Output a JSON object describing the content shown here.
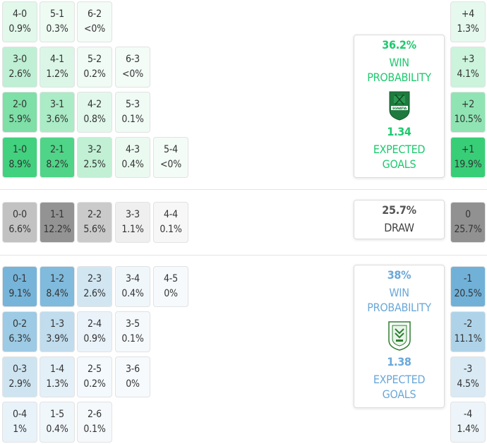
{
  "home": {
    "rows": [
      [
        {
          "score": "4-0",
          "pct": "0.9%"
        },
        {
          "score": "5-1",
          "pct": "0.3%"
        },
        {
          "score": "6-2",
          "pct": "<0%"
        }
      ],
      [
        {
          "score": "3-0",
          "pct": "2.6%"
        },
        {
          "score": "4-1",
          "pct": "1.2%"
        },
        {
          "score": "5-2",
          "pct": "0.2%"
        },
        {
          "score": "6-3",
          "pct": "<0%"
        }
      ],
      [
        {
          "score": "2-0",
          "pct": "5.9%"
        },
        {
          "score": "3-1",
          "pct": "3.6%"
        },
        {
          "score": "4-2",
          "pct": "0.8%"
        },
        {
          "score": "5-3",
          "pct": "0.1%"
        }
      ],
      [
        {
          "score": "1-0",
          "pct": "8.9%"
        },
        {
          "score": "2-1",
          "pct": "8.2%"
        },
        {
          "score": "3-2",
          "pct": "2.5%"
        },
        {
          "score": "4-3",
          "pct": "0.4%"
        },
        {
          "score": "5-4",
          "pct": "<0%"
        }
      ]
    ],
    "margins": [
      {
        "label": "+4",
        "pct": "1.3%"
      },
      {
        "label": "+3",
        "pct": "4.1%"
      },
      {
        "label": "+2",
        "pct": "10.5%"
      },
      {
        "label": "+1",
        "pct": "19.9%"
      }
    ],
    "win_probability": "36.2%",
    "win_label_1": "WIN",
    "win_label_2": "PROBABILITY",
    "expected_goals": "1.34",
    "xg_label_1": "EXPECTED",
    "xg_label_2": "GOALS",
    "logo_text": "EGNATIA",
    "color": "#2ecc71"
  },
  "draw": {
    "row": [
      {
        "score": "0-0",
        "pct": "6.6%"
      },
      {
        "score": "1-1",
        "pct": "12.2%"
      },
      {
        "score": "2-2",
        "pct": "5.6%"
      },
      {
        "score": "3-3",
        "pct": "1.1%"
      },
      {
        "score": "4-4",
        "pct": "0.1%"
      }
    ],
    "margin": {
      "label": "0",
      "pct": "25.7%"
    },
    "probability": "25.7%",
    "label": "DRAW",
    "color": "#555555"
  },
  "away": {
    "rows": [
      [
        {
          "score": "0-1",
          "pct": "9.1%"
        },
        {
          "score": "1-2",
          "pct": "8.4%"
        },
        {
          "score": "2-3",
          "pct": "2.6%"
        },
        {
          "score": "3-4",
          "pct": "0.4%"
        },
        {
          "score": "4-5",
          "pct": "0%"
        }
      ],
      [
        {
          "score": "0-2",
          "pct": "6.3%"
        },
        {
          "score": "1-3",
          "pct": "3.9%"
        },
        {
          "score": "2-4",
          "pct": "0.9%"
        },
        {
          "score": "3-5",
          "pct": "0.1%"
        }
      ],
      [
        {
          "score": "0-3",
          "pct": "2.9%"
        },
        {
          "score": "1-4",
          "pct": "1.3%"
        },
        {
          "score": "2-5",
          "pct": "0.2%"
        },
        {
          "score": "3-6",
          "pct": "0%"
        }
      ],
      [
        {
          "score": "0-4",
          "pct": "1%"
        },
        {
          "score": "1-5",
          "pct": "0.4%"
        },
        {
          "score": "2-6",
          "pct": "0.1%"
        }
      ]
    ],
    "margins": [
      {
        "label": "-1",
        "pct": "20.5%"
      },
      {
        "label": "-2",
        "pct": "11.1%"
      },
      {
        "label": "-3",
        "pct": "4.5%"
      },
      {
        "label": "-4",
        "pct": "1.4%"
      }
    ],
    "win_probability": "38%",
    "win_label_1": "WIN",
    "win_label_2": "PROBABILITY",
    "expected_goals": "1.38",
    "xg_label_1": "EXPECTED",
    "xg_label_2": "GOALS",
    "color": "#6baed6"
  },
  "colors": {
    "home_text": "#1ec96f",
    "away_text": "#6aa8d8",
    "draw_text": "#444444"
  }
}
